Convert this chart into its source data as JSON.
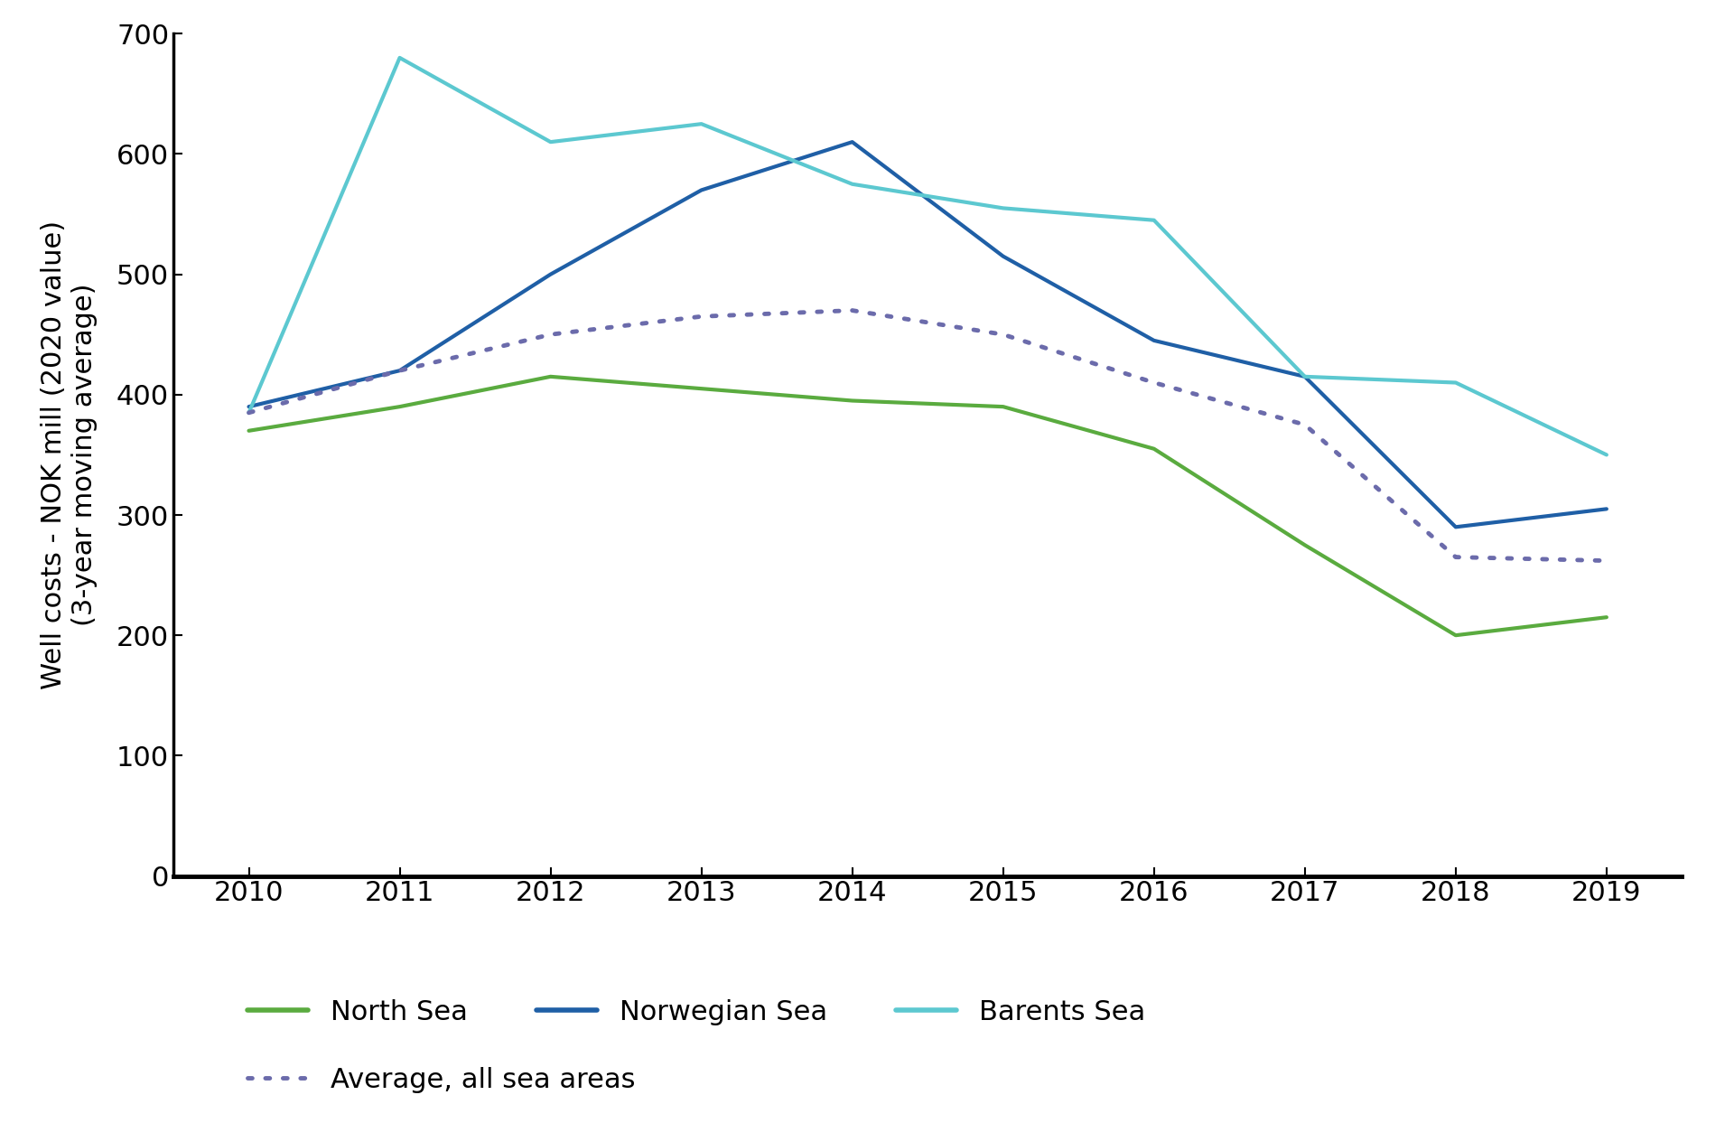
{
  "years": [
    2010,
    2011,
    2012,
    2013,
    2014,
    2015,
    2016,
    2017,
    2018,
    2019
  ],
  "north_sea": [
    370,
    390,
    415,
    405,
    395,
    390,
    355,
    275,
    200,
    215
  ],
  "norwegian_sea": [
    390,
    420,
    500,
    570,
    610,
    515,
    445,
    415,
    290,
    305
  ],
  "barents_sea": [
    385,
    680,
    610,
    625,
    575,
    555,
    545,
    415,
    410,
    350
  ],
  "average_all": [
    385,
    420,
    450,
    465,
    470,
    450,
    410,
    375,
    265,
    262
  ],
  "north_sea_color": "#5aab3f",
  "norwegian_sea_color": "#1f5fa6",
  "barents_sea_color": "#5cc8d0",
  "average_color": "#6b6bab",
  "ylabel_line1": "Well costs - NOK mill (2020 value)",
  "ylabel_line2": "(3-year moving average)",
  "ylim": [
    0,
    700
  ],
  "yticks": [
    0,
    100,
    200,
    300,
    400,
    500,
    600,
    700
  ],
  "xlim": [
    2009.5,
    2019.5
  ],
  "legend_north_sea": "North Sea",
  "legend_norwegian_sea": "Norwegian Sea",
  "legend_barents_sea": "Barents Sea",
  "legend_average": "Average, all sea areas",
  "line_width": 3.0,
  "font_size_tick": 22,
  "font_size_legend": 22,
  "font_size_ylabel": 22,
  "spine_lw": 2.5
}
